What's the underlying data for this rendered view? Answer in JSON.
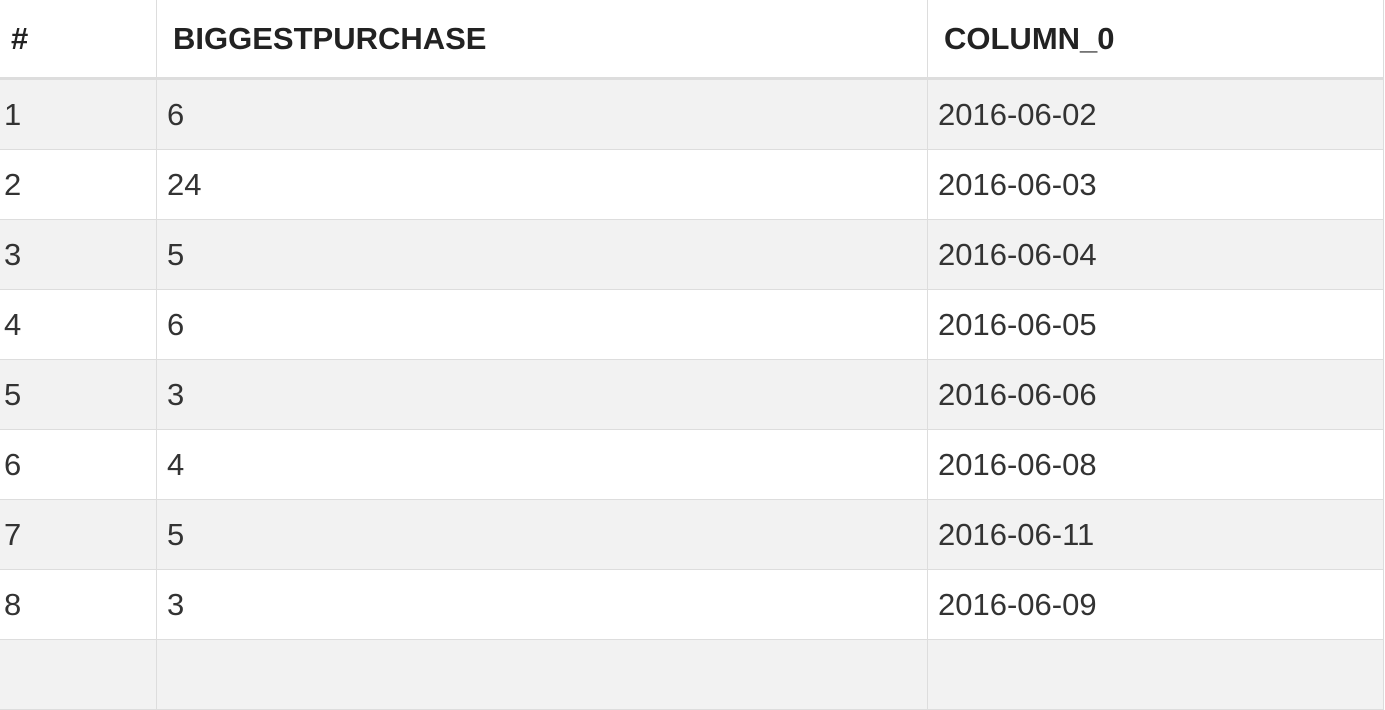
{
  "table": {
    "columns": [
      "#",
      "BIGGESTPURCHASE",
      "COLUMN_0"
    ],
    "rows": [
      {
        "idx": "1",
        "purchase": "6",
        "date": "2016-06-02"
      },
      {
        "idx": "2",
        "purchase": "24",
        "date": "2016-06-03"
      },
      {
        "idx": "3",
        "purchase": "5",
        "date": "2016-06-04"
      },
      {
        "idx": "4",
        "purchase": "6",
        "date": "2016-06-05"
      },
      {
        "idx": "5",
        "purchase": "3",
        "date": "2016-06-06"
      },
      {
        "idx": "6",
        "purchase": "4",
        "date": "2016-06-08"
      },
      {
        "idx": "7",
        "purchase": "5",
        "date": "2016-06-11"
      },
      {
        "idx": "8",
        "purchase": "3",
        "date": "2016-06-09"
      },
      {
        "idx": "",
        "purchase": "",
        "date": ""
      }
    ]
  },
  "colors": {
    "row_stripe": "#f2f2f2",
    "row_plain": "#ffffff",
    "border": "#dddddd",
    "text": "#333333"
  }
}
